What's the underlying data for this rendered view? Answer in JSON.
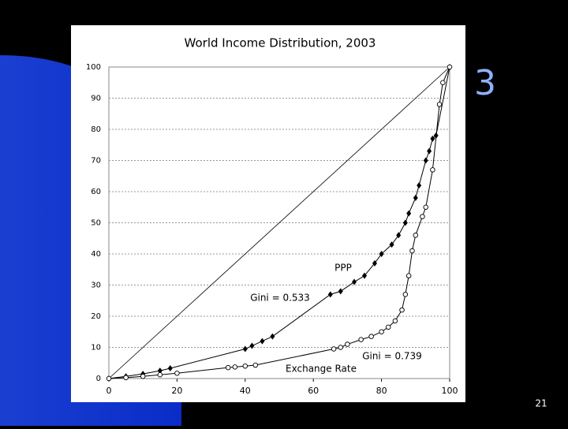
{
  "slide": {
    "title_fragment": "3",
    "number": "21"
  },
  "chart_data": {
    "type": "line",
    "title": "World Income Distribution, 2003",
    "xlim": [
      0,
      100
    ],
    "ylim": [
      0,
      100
    ],
    "xticks": [
      0,
      20,
      40,
      60,
      80,
      100
    ],
    "yticks": [
      0,
      10,
      20,
      30,
      40,
      50,
      60,
      70,
      80,
      90,
      100
    ],
    "grid": true,
    "series": [
      {
        "name": "PPP",
        "color": "#000000",
        "marker": "diamond",
        "x": [
          0,
          5,
          10,
          15,
          18,
          40,
          42,
          45,
          48,
          65,
          68,
          72,
          75,
          78,
          80,
          83,
          85,
          87,
          88,
          90,
          91,
          93,
          94,
          95,
          96,
          100
        ],
        "values": [
          0,
          0.7,
          1.5,
          2.5,
          3.3,
          9.5,
          10.5,
          12,
          13.5,
          27,
          28,
          31,
          33,
          37,
          40,
          43,
          46,
          50,
          53,
          58,
          62,
          70,
          73,
          77,
          78,
          100
        ]
      },
      {
        "name": "Exchange Rate",
        "color": "#000000",
        "marker": "circle",
        "x": [
          0,
          5,
          10,
          15,
          20,
          35,
          37,
          40,
          43,
          66,
          68,
          70,
          74,
          77,
          80,
          82,
          84,
          86,
          87,
          88,
          89,
          90,
          92,
          93,
          95,
          97,
          98,
          100
        ],
        "values": [
          0,
          0.3,
          0.7,
          1.2,
          1.7,
          3.5,
          3.7,
          4,
          4.3,
          9.5,
          10,
          11,
          12.5,
          13.5,
          15,
          16.5,
          18.5,
          22,
          27,
          33,
          41,
          46,
          52,
          55,
          67,
          88,
          95,
          100
        ]
      }
    ],
    "annotations": [
      "Gini = 0.533",
      "Gini = 0.739"
    ]
  }
}
